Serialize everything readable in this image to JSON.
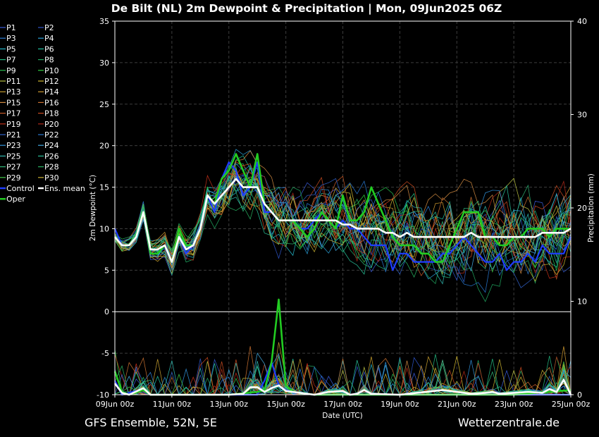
{
  "chart_data": {
    "type": "line",
    "title": "De Bilt  (NL)  2m Dewpoint & Precipitation | Mon, 09Jun2025 06Z",
    "ylabel": "2m Dewpoint (°C)",
    "y2label": "Precipitation (mm)",
    "xlabel": "Date (UTC)",
    "ylim": [
      -10,
      35
    ],
    "y2lim": [
      0,
      40
    ],
    "yticks": [
      "35",
      "30",
      "25",
      "20",
      "15",
      "10",
      "5",
      "0",
      "-5",
      "-10"
    ],
    "y2ticks": [
      "40",
      "30",
      "20",
      "10",
      "0"
    ],
    "xlim_hours": [
      0,
      384
    ],
    "xticks": [
      {
        "label": "09Jun 00z",
        "hour": 0
      },
      {
        "label": "11Jun 00z",
        "hour": 48
      },
      {
        "label": "13Jun 00z",
        "hour": 96
      },
      {
        "label": "15Jun 00z",
        "hour": 144
      },
      {
        "label": "17Jun 00z",
        "hour": 192
      },
      {
        "label": "19Jun 00z",
        "hour": 240
      },
      {
        "label": "21Jun 00z",
        "hour": 288
      },
      {
        "label": "23Jun 00z",
        "hour": 336
      },
      {
        "label": "25Jun 00z",
        "hour": 384
      }
    ],
    "grid": true,
    "legend_placement": "left",
    "legend": [
      "P1",
      "P2",
      "P3",
      "P4",
      "P5",
      "P6",
      "P7",
      "P8",
      "P9",
      "P10",
      "P11",
      "P12",
      "P13",
      "P14",
      "P15",
      "P16",
      "P17",
      "P18",
      "P19",
      "P20",
      "P21",
      "P22",
      "P23",
      "P24",
      "P25",
      "P26",
      "P27",
      "P28",
      "P29",
      "P30",
      "Control",
      "Ens. mean",
      "Oper"
    ],
    "member_colors": [
      "#3a5bd9",
      "#2e54c8",
      "#2d7fd6",
      "#2aa0d8",
      "#22b5c8",
      "#1fc0a0",
      "#22b880",
      "#20a860",
      "#28c050",
      "#30d040",
      "#b8c040",
      "#d0b830",
      "#c8a030",
      "#d09a30",
      "#d08a40",
      "#c87030",
      "#c85a28",
      "#c84a20",
      "#c03018",
      "#b02818",
      "#3060c8",
      "#2878d0",
      "#3090d8",
      "#40a8e0",
      "#30b8b0",
      "#28c098",
      "#30b878",
      "#28b060",
      "#40c848",
      "#c8b030"
    ],
    "series_dewpoint": [
      {
        "name": "Oper",
        "color": "#22cc22",
        "points": [
          [
            0,
            9
          ],
          [
            6,
            8
          ],
          [
            12,
            8
          ],
          [
            18,
            9
          ],
          [
            24,
            12
          ],
          [
            30,
            7
          ],
          [
            36,
            7
          ],
          [
            42,
            8
          ],
          [
            48,
            6
          ],
          [
            54,
            10
          ],
          [
            60,
            8
          ],
          [
            66,
            8
          ],
          [
            72,
            10
          ],
          [
            78,
            14
          ],
          [
            84,
            13
          ],
          [
            90,
            16
          ],
          [
            96,
            17
          ],
          [
            102,
            19
          ],
          [
            108,
            17
          ],
          [
            114,
            15
          ],
          [
            120,
            19
          ],
          [
            126,
            13
          ],
          [
            132,
            12
          ],
          [
            138,
            11
          ],
          [
            144,
            11
          ],
          [
            150,
            11
          ],
          [
            156,
            10
          ],
          [
            162,
            9
          ],
          [
            168,
            10
          ],
          [
            174,
            12
          ],
          [
            180,
            11
          ],
          [
            186,
            10
          ],
          [
            192,
            14
          ],
          [
            198,
            11
          ],
          [
            204,
            11
          ],
          [
            210,
            12
          ],
          [
            216,
            15
          ],
          [
            222,
            13
          ],
          [
            228,
            11
          ],
          [
            234,
            9
          ],
          [
            240,
            8
          ],
          [
            246,
            8
          ],
          [
            252,
            8
          ],
          [
            258,
            7
          ],
          [
            264,
            7
          ],
          [
            270,
            6
          ],
          [
            276,
            6
          ],
          [
            282,
            8
          ],
          [
            288,
            10
          ],
          [
            294,
            12
          ],
          [
            300,
            12
          ],
          [
            306,
            12
          ],
          [
            312,
            9
          ],
          [
            318,
            9
          ],
          [
            324,
            8
          ],
          [
            330,
            8
          ],
          [
            336,
            9
          ],
          [
            342,
            9
          ],
          [
            348,
            10
          ],
          [
            354,
            10
          ],
          [
            360,
            10
          ],
          [
            366,
            9
          ],
          [
            372,
            10
          ],
          [
            378,
            10
          ],
          [
            384,
            10
          ]
        ]
      },
      {
        "name": "Control",
        "color": "#1f3dff",
        "points": [
          [
            0,
            10
          ],
          [
            6,
            8
          ],
          [
            12,
            8
          ],
          [
            18,
            9
          ],
          [
            24,
            12
          ],
          [
            30,
            7
          ],
          [
            36,
            7
          ],
          [
            42,
            8
          ],
          [
            48,
            6
          ],
          [
            54,
            9
          ],
          [
            60,
            7
          ],
          [
            66,
            8
          ],
          [
            72,
            10
          ],
          [
            78,
            14
          ],
          [
            84,
            12
          ],
          [
            90,
            16
          ],
          [
            96,
            18
          ],
          [
            102,
            17
          ],
          [
            108,
            14
          ],
          [
            114,
            15
          ],
          [
            120,
            18
          ],
          [
            126,
            12
          ],
          [
            132,
            12
          ],
          [
            138,
            11
          ],
          [
            144,
            11
          ],
          [
            150,
            11
          ],
          [
            156,
            10
          ],
          [
            162,
            10
          ],
          [
            168,
            11
          ],
          [
            174,
            12
          ],
          [
            180,
            11
          ],
          [
            186,
            10
          ],
          [
            192,
            11
          ],
          [
            198,
            10
          ],
          [
            204,
            10
          ],
          [
            210,
            9
          ],
          [
            216,
            8
          ],
          [
            222,
            8
          ],
          [
            228,
            8
          ],
          [
            234,
            5
          ],
          [
            240,
            7
          ],
          [
            246,
            7
          ],
          [
            252,
            6
          ],
          [
            258,
            6
          ],
          [
            264,
            6
          ],
          [
            270,
            6
          ],
          [
            276,
            7
          ],
          [
            282,
            7
          ],
          [
            288,
            8
          ],
          [
            294,
            9
          ],
          [
            300,
            8
          ],
          [
            306,
            7
          ],
          [
            312,
            6
          ],
          [
            318,
            6
          ],
          [
            324,
            7
          ],
          [
            330,
            5
          ],
          [
            336,
            6
          ],
          [
            342,
            6
          ],
          [
            348,
            7
          ],
          [
            354,
            6
          ],
          [
            360,
            8
          ],
          [
            366,
            7
          ],
          [
            372,
            7
          ],
          [
            378,
            7
          ],
          [
            384,
            9
          ]
        ]
      },
      {
        "name": "Ens. mean",
        "color": "#ffffff",
        "points": [
          [
            0,
            9
          ],
          [
            6,
            8
          ],
          [
            12,
            8
          ],
          [
            18,
            9
          ],
          [
            24,
            12
          ],
          [
            30,
            7.5
          ],
          [
            36,
            7.5
          ],
          [
            42,
            8
          ],
          [
            48,
            6
          ],
          [
            54,
            9
          ],
          [
            60,
            7.5
          ],
          [
            66,
            8
          ],
          [
            72,
            10
          ],
          [
            78,
            14
          ],
          [
            84,
            13
          ],
          [
            90,
            14
          ],
          [
            96,
            15
          ],
          [
            102,
            16
          ],
          [
            108,
            15
          ],
          [
            114,
            15
          ],
          [
            120,
            15
          ],
          [
            126,
            13
          ],
          [
            132,
            12
          ],
          [
            138,
            11
          ],
          [
            144,
            11
          ],
          [
            150,
            11
          ],
          [
            156,
            11
          ],
          [
            162,
            11
          ],
          [
            168,
            11
          ],
          [
            174,
            11
          ],
          [
            180,
            11
          ],
          [
            186,
            11
          ],
          [
            192,
            10.5
          ],
          [
            198,
            10.5
          ],
          [
            204,
            10
          ],
          [
            210,
            10
          ],
          [
            216,
            10
          ],
          [
            222,
            10
          ],
          [
            228,
            9.5
          ],
          [
            234,
            9.5
          ],
          [
            240,
            9
          ],
          [
            246,
            9.5
          ],
          [
            252,
            9
          ],
          [
            258,
            9
          ],
          [
            264,
            9
          ],
          [
            270,
            9
          ],
          [
            276,
            9
          ],
          [
            282,
            9
          ],
          [
            288,
            9
          ],
          [
            294,
            9
          ],
          [
            300,
            9.5
          ],
          [
            306,
            9
          ],
          [
            312,
            9
          ],
          [
            318,
            9
          ],
          [
            324,
            9
          ],
          [
            330,
            9
          ],
          [
            336,
            9
          ],
          [
            342,
            9
          ],
          [
            348,
            9
          ],
          [
            354,
            9
          ],
          [
            360,
            9.5
          ],
          [
            366,
            9.5
          ],
          [
            372,
            9.5
          ],
          [
            378,
            9.5
          ],
          [
            384,
            10
          ]
        ]
      }
    ],
    "series_precipitation": [
      {
        "name": "Oper",
        "color": "#22cc22",
        "points": [
          [
            0,
            2.5
          ],
          [
            6,
            0.3
          ],
          [
            12,
            0
          ],
          [
            24,
            0.5
          ],
          [
            30,
            0
          ],
          [
            96,
            0
          ],
          [
            120,
            0.3
          ],
          [
            126,
            0.5
          ],
          [
            132,
            3.5
          ],
          [
            138,
            10.2
          ],
          [
            144,
            1
          ],
          [
            150,
            0.3
          ],
          [
            168,
            0
          ],
          [
            240,
            0
          ],
          [
            288,
            0
          ],
          [
            336,
            0
          ],
          [
            384,
            0.5
          ]
        ]
      },
      {
        "name": "Control",
        "color": "#1f3dff",
        "points": [
          [
            0,
            1.5
          ],
          [
            6,
            0
          ],
          [
            24,
            0.6
          ],
          [
            30,
            0
          ],
          [
            120,
            0
          ],
          [
            126,
            1.5
          ],
          [
            132,
            3.5
          ],
          [
            138,
            1
          ],
          [
            144,
            0.5
          ],
          [
            150,
            0.3
          ],
          [
            168,
            0
          ],
          [
            240,
            0
          ],
          [
            288,
            0
          ],
          [
            336,
            0
          ],
          [
            384,
            0
          ]
        ]
      },
      {
        "name": "Ens. mean",
        "color": "#ffffff",
        "points": [
          [
            0,
            1.2
          ],
          [
            6,
            0.2
          ],
          [
            12,
            0
          ],
          [
            24,
            0.7
          ],
          [
            30,
            0
          ],
          [
            48,
            0
          ],
          [
            96,
            0
          ],
          [
            108,
            0.1
          ],
          [
            114,
            0.8
          ],
          [
            120,
            0.8
          ],
          [
            126,
            0.3
          ],
          [
            132,
            0.7
          ],
          [
            138,
            1
          ],
          [
            144,
            0.4
          ],
          [
            156,
            0.2
          ],
          [
            168,
            0
          ],
          [
            180,
            0.3
          ],
          [
            192,
            0.4
          ],
          [
            198,
            0
          ],
          [
            204,
            0.1
          ],
          [
            210,
            0.5
          ],
          [
            216,
            0.1
          ],
          [
            240,
            0
          ],
          [
            276,
            0.5
          ],
          [
            288,
            0.3
          ],
          [
            300,
            0.1
          ],
          [
            312,
            0.2
          ],
          [
            318,
            0.3
          ],
          [
            324,
            0.1
          ],
          [
            336,
            0.2
          ],
          [
            348,
            0.3
          ],
          [
            360,
            0.2
          ],
          [
            366,
            0.6
          ],
          [
            372,
            0.3
          ],
          [
            378,
            1.6
          ],
          [
            384,
            0
          ]
        ]
      }
    ]
  },
  "footer": {
    "left": "GFS Ensemble, 52N, 5E",
    "right": "Wetterzentrale.de"
  }
}
